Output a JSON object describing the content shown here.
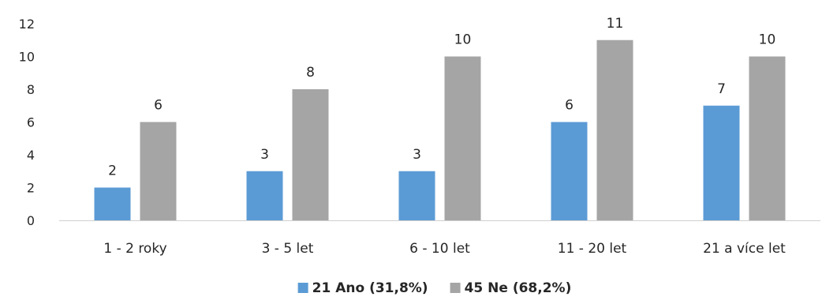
{
  "chart_data": {
    "type": "bar",
    "title": "",
    "xlabel": "",
    "ylabel": "",
    "categories": [
      "1 - 2 roky",
      "3 - 5 let",
      "6 - 10 let",
      "11 - 20 let",
      "21 a více let"
    ],
    "series": [
      {
        "name": "21 Ano (31,8%)",
        "color": "#5b9bd5",
        "values": [
          2,
          3,
          3,
          6,
          7
        ]
      },
      {
        "name": "45 Ne (68,2%)",
        "color": "#a5a5a5",
        "values": [
          6,
          8,
          10,
          11,
          10
        ]
      }
    ],
    "ylim": [
      0,
      12
    ],
    "yticks": [
      0,
      2,
      4,
      6,
      8,
      10,
      12
    ],
    "grid": false,
    "data_labels": true,
    "legend": "bottom"
  }
}
